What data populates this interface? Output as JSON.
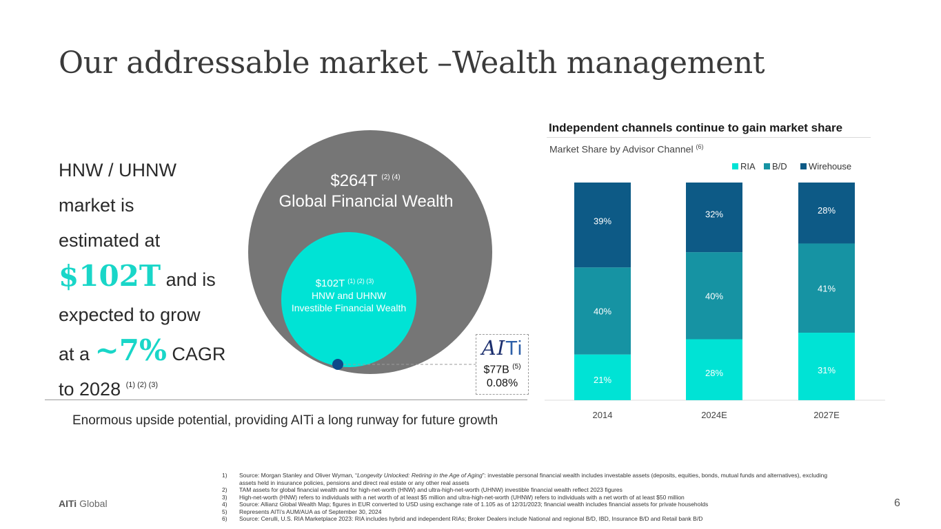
{
  "title": "Our addressable market –Wealth management",
  "hero": {
    "l1": "HNW / UHNW",
    "l2": "market is",
    "l3": "estimated at",
    "value": "$102T",
    "l4": " and is",
    "l5": "expected to grow",
    "l6a": "at a ",
    "growth": "~7%",
    "l6b": " CAGR",
    "l7": "to 2028",
    "l7_refs": "(1) (2) (3)"
  },
  "bubble": {
    "outer_value": "$264T",
    "outer_refs": "(2) (4)",
    "outer_label": "Global Financial Wealth",
    "inner_value": "$102T",
    "inner_refs": "(1) (2) (3)",
    "inner_label1": "HNW and UHNW",
    "inner_label2": "Investible Financial Wealth"
  },
  "aiti": {
    "logo_a": "AI",
    "logo_b": "Ti",
    "aum": "$77B",
    "aum_ref": "(5)",
    "share": "0.08%"
  },
  "tagline": "Enormous upside potential, providing AITi a long runway for future growth",
  "colors": {
    "ria": "#00e3d5",
    "bd": "#1693a3",
    "wirehouse": "#0d5a86",
    "outer": "#767676",
    "inner": "#00e3d5",
    "dot": "#0d4a8a"
  },
  "chart_data": {
    "type": "bar",
    "stacked": true,
    "title": "Independent channels continue to gain market share",
    "subtitle": "Market Share by Advisor Channel",
    "subtitle_ref": "(6)",
    "categories": [
      "2014",
      "2024E",
      "2027E"
    ],
    "series": [
      {
        "name": "RIA",
        "values": [
          21,
          28,
          31
        ],
        "labels": [
          "21%",
          "28%",
          "31%"
        ]
      },
      {
        "name": "B/D",
        "values": [
          40,
          40,
          41
        ],
        "labels": [
          "40%",
          "40%",
          "41%"
        ]
      },
      {
        "name": "Wirehouse",
        "values": [
          39,
          32,
          28
        ],
        "labels": [
          "39%",
          "32%",
          "28%"
        ]
      }
    ],
    "ylim": [
      0,
      100
    ],
    "legend": "top-right",
    "grid": false
  },
  "footnotes": [
    {
      "num": "1)",
      "pre": "Source: Morgan Stanley and Oliver Wyman, “",
      "italic": "Longevity Unlocked: Retiring in the Age of Aging",
      "post": "”: investable personal financial wealth includes investable assets (deposits, equities, bonds, mutual funds and alternatives), excluding assets held in insurance policies, pensions and direct real estate or any other real assets"
    },
    {
      "num": "2)",
      "pre": "TAM assets for global financial wealth and for high-net-worth (HNW) and ultra-high-net-worth (UHNW) investible financial wealth reflect 2023 figures",
      "italic": "",
      "post": ""
    },
    {
      "num": "3)",
      "pre": "High-net-worth (HNW) refers to individuals with a net worth of at least $5 million and ultra-high-net-worth (UHNW) refers to individuals with a net worth of at least $50 million",
      "italic": "",
      "post": ""
    },
    {
      "num": "4)",
      "pre": "Source: Allianz Global Wealth Map; figures in EUR converted to USD using exchange rate of 1.105 as of 12/31/2023; financial wealth includes financial assets for private households",
      "italic": "",
      "post": ""
    },
    {
      "num": "5)",
      "pre": "Represents AITi’s AUM/AUA as of September 30, 2024",
      "italic": "",
      "post": ""
    },
    {
      "num": "6)",
      "pre": "Source: Cerulli, U.S. RIA Marketplace 2023: RIA includes hybrid and independent RIAs; Broker Dealers include National and regional B/D, IBD, Insurance B/D and Retail bank B/D",
      "italic": "",
      "post": ""
    }
  ],
  "footer": {
    "brand_bold": "AITi",
    "brand_rest": " Global",
    "page": "6"
  }
}
